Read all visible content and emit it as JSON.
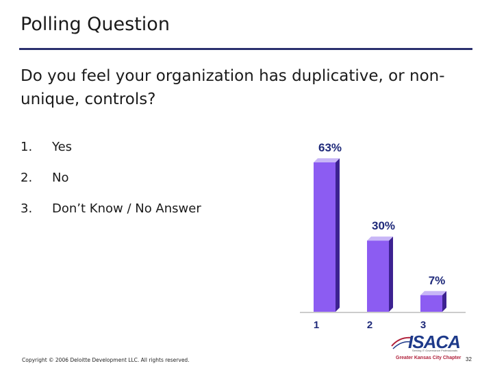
{
  "slide": {
    "title": "Polling Question",
    "question": "Do you feel your organization has duplicative, or non-unique, controls?",
    "options": [
      {
        "number": "1.",
        "label": "Yes"
      },
      {
        "number": "2.",
        "label": "No"
      },
      {
        "number": "3.",
        "label": "Don’t Know / No Answer"
      }
    ],
    "copyright": "Copyright © 2006 Deloitte Development LLC. All rights reserved.",
    "page_number": "32",
    "logo": {
      "name": "ISACA",
      "tagline": "Serving IT Governance Professionals",
      "chapter": "Greater Kansas City Chapter"
    }
  },
  "colors": {
    "title_rule": "#2a2f6e",
    "bar_front": "#8c5cf2",
    "bar_side": "#3d2291",
    "bar_top": "#c8b6f7",
    "axis": "#9a9a9a",
    "label_text": "#1f2a7a"
  },
  "chart_data": {
    "type": "bar",
    "categories": [
      "1",
      "2",
      "3"
    ],
    "values": [
      63,
      30,
      7
    ],
    "data_labels": [
      "63%",
      "30%",
      "7%"
    ],
    "ylim": [
      0,
      63
    ],
    "grid": false,
    "legend": "none"
  }
}
